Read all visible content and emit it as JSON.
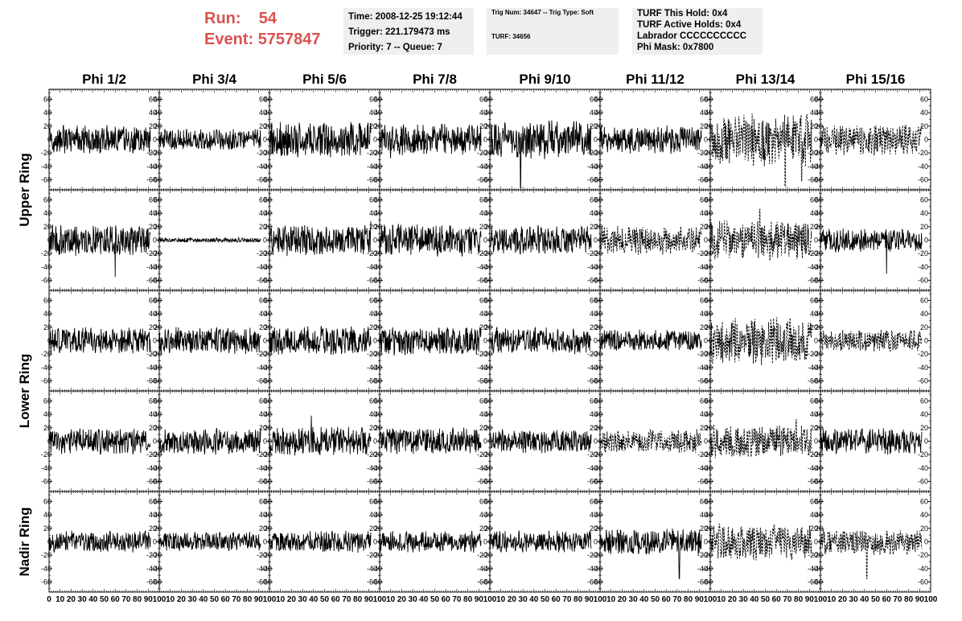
{
  "header": {
    "run_label": "Run:",
    "run_value": "54",
    "event_label": "Event:",
    "event_value": "5757847",
    "time": "Time: 2008-12-25 19:12:44",
    "trigger": "Trigger: 221.179473 ms",
    "priority": "Priority: 7 -- Queue: 7",
    "trig_num": "Trig Num: 34647 -- Trig Type: Soft",
    "turf": "TURF: 34656",
    "turf_hold": "TURF This Hold: 0x4",
    "turf_active": "TURF Active Holds: 0x4",
    "labrador": "Labrador CCCCCCCCCC",
    "phi_mask": "Phi Mask: 0x7800"
  },
  "colors": {
    "run_text": "#d9534f",
    "info_bg": "#efefef",
    "trace": "#000000"
  },
  "chart_data": {
    "type": "line",
    "columns": [
      "Phi 1/2",
      "Phi 3/4",
      "Phi 5/6",
      "Phi 7/8",
      "Phi 9/10",
      "Phi 11/12",
      "Phi 13/14",
      "Phi 15/16"
    ],
    "row_groups": [
      {
        "label": "Upper Ring",
        "rows": [
          0,
          1
        ]
      },
      {
        "label": "Lower Ring",
        "rows": [
          2,
          3
        ]
      },
      {
        "label": "Nadir Ring",
        "rows": [
          4
        ]
      }
    ],
    "xlim": [
      0,
      100
    ],
    "ylim": [
      -75,
      75
    ],
    "x_ticks": [
      0,
      10,
      20,
      30,
      40,
      50,
      60,
      70,
      80,
      90,
      100
    ],
    "y_ticks": [
      -60,
      -40,
      -20,
      0,
      20,
      40,
      60
    ],
    "trace_points": 260,
    "trace_x_max": 92,
    "dashed_panels": [
      [
        0,
        6
      ],
      [
        0,
        7
      ],
      [
        1,
        5
      ],
      [
        1,
        6
      ],
      [
        2,
        6
      ],
      [
        2,
        7
      ],
      [
        3,
        5
      ],
      [
        3,
        6
      ],
      [
        4,
        6
      ],
      [
        4,
        7
      ]
    ],
    "amplitudes": [
      [
        12,
        9,
        15,
        13,
        16,
        12,
        22,
        13
      ],
      [
        13,
        2,
        13,
        14,
        12,
        12,
        17,
        10
      ],
      [
        11,
        11,
        12,
        12,
        11,
        9,
        20,
        9
      ],
      [
        11,
        11,
        12,
        11,
        10,
        10,
        14,
        11
      ],
      [
        9,
        8,
        9,
        9,
        9,
        11,
        15,
        11
      ]
    ],
    "spikes": [
      {
        "row": 0,
        "col": 3,
        "x": 10,
        "y": -28
      },
      {
        "row": 0,
        "col": 4,
        "x": 28,
        "y": -72
      },
      {
        "row": 0,
        "col": 6,
        "x": 68,
        "y": -70
      },
      {
        "row": 0,
        "col": 6,
        "x": 83,
        "y": -62
      },
      {
        "row": 1,
        "col": 0,
        "x": 60,
        "y": -55
      },
      {
        "row": 1,
        "col": 2,
        "x": 92,
        "y": 28
      },
      {
        "row": 1,
        "col": 6,
        "x": 45,
        "y": 46
      },
      {
        "row": 1,
        "col": 7,
        "x": 60,
        "y": -50
      },
      {
        "row": 3,
        "col": 2,
        "x": 38,
        "y": 38
      },
      {
        "row": 3,
        "col": 6,
        "x": 78,
        "y": 32
      },
      {
        "row": 4,
        "col": 5,
        "x": 72,
        "y": -55
      },
      {
        "row": 4,
        "col": 7,
        "x": 42,
        "y": -55
      }
    ]
  }
}
